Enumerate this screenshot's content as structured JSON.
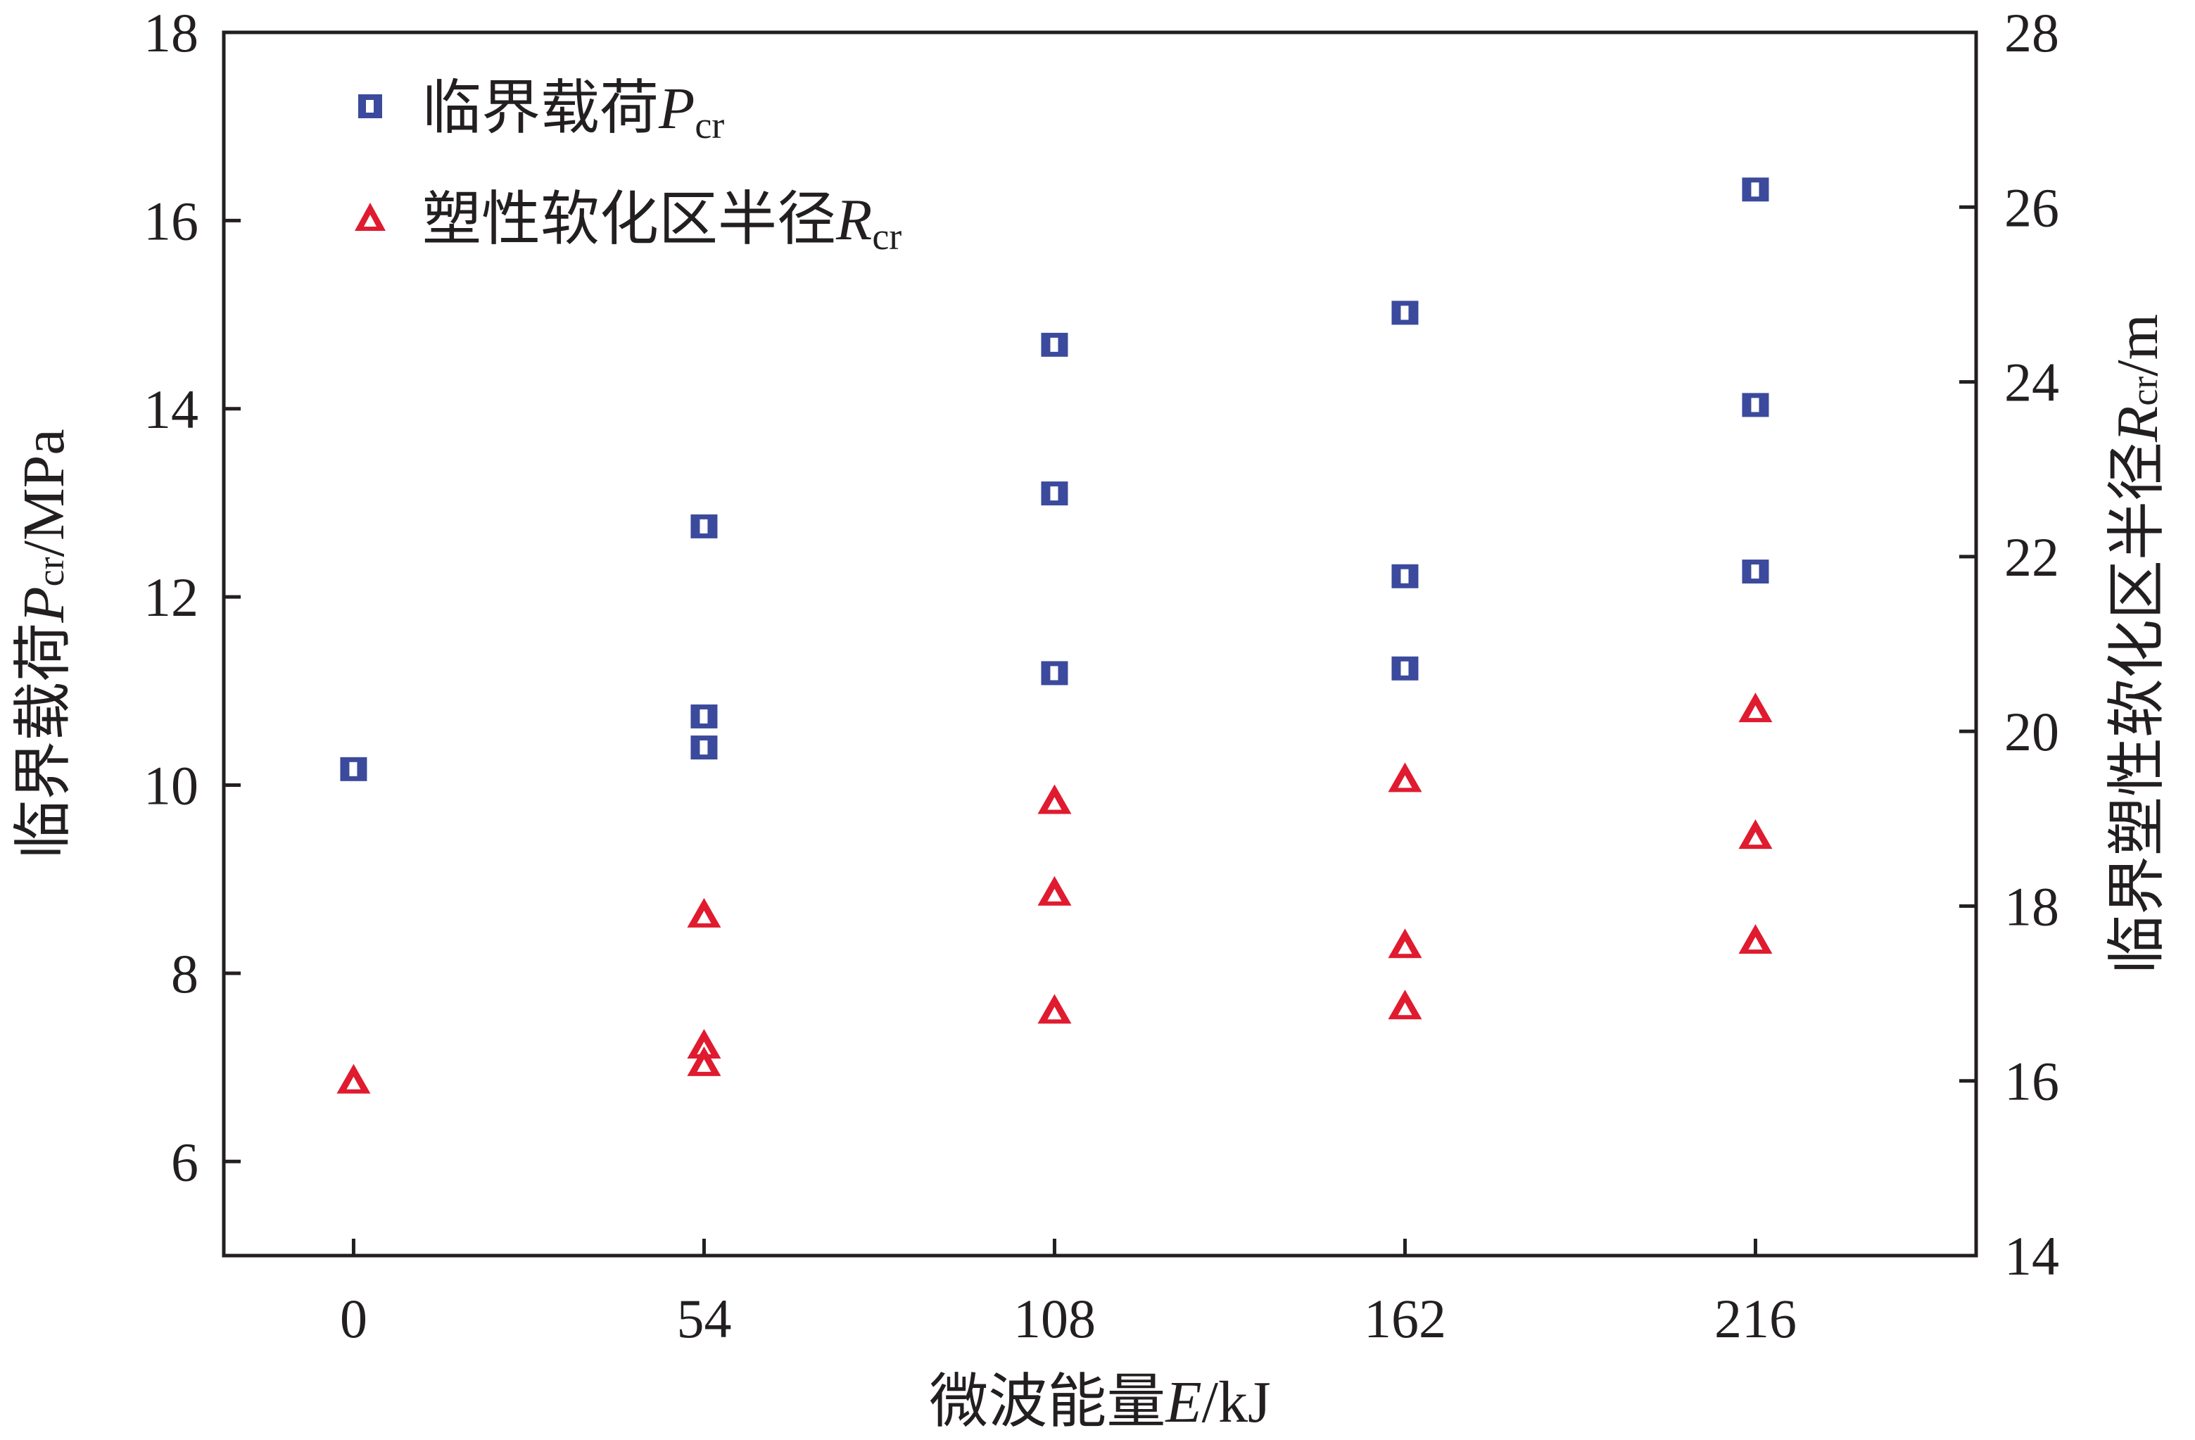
{
  "chart_data": {
    "type": "scatter",
    "x_ticks": [
      0,
      54,
      108,
      162,
      216
    ],
    "xlim": [
      -20,
      250
    ],
    "xlabel": {
      "main": "微波能量",
      "var": "E",
      "unit": "/kJ"
    },
    "y_left": {
      "lim": [
        5,
        18
      ],
      "ticks": [
        6,
        8,
        10,
        12,
        14,
        16,
        18
      ],
      "label": {
        "main": "临界载荷",
        "var": "P",
        "sub": "cr",
        "unit": "/MPa"
      }
    },
    "y_right": {
      "lim": [
        14,
        28
      ],
      "ticks": [
        14,
        16,
        18,
        20,
        22,
        24,
        26,
        28
      ],
      "label": {
        "main": "临界塑性软化区半径",
        "var": "R",
        "sub": "cr",
        "unit": "/m"
      }
    },
    "legend_position": "top-left",
    "series": [
      {
        "name": "临界载荷",
        "name_var": "P",
        "name_sub": "cr",
        "axis": "left",
        "marker": "square",
        "color": "#3b4a9c",
        "points": [
          [
            0,
            10.17
          ],
          [
            54,
            12.75
          ],
          [
            54,
            10.73
          ],
          [
            54,
            10.4
          ],
          [
            108,
            14.68
          ],
          [
            108,
            13.1
          ],
          [
            108,
            11.19
          ],
          [
            162,
            15.02
          ],
          [
            162,
            12.22
          ],
          [
            162,
            11.24
          ],
          [
            216,
            16.33
          ],
          [
            216,
            14.04
          ],
          [
            216,
            12.27
          ]
        ]
      },
      {
        "name": "塑性软化区半径",
        "name_var": "R",
        "name_sub": "cr",
        "axis": "right",
        "marker": "triangle",
        "color": "#e01b2f",
        "points": [
          [
            0,
            16.0
          ],
          [
            54,
            17.9
          ],
          [
            54,
            16.4
          ],
          [
            54,
            16.2
          ],
          [
            108,
            19.2
          ],
          [
            108,
            18.15
          ],
          [
            108,
            16.8
          ],
          [
            162,
            19.45
          ],
          [
            162,
            17.55
          ],
          [
            162,
            16.85
          ],
          [
            216,
            20.25
          ],
          [
            216,
            18.8
          ],
          [
            216,
            17.6
          ]
        ]
      }
    ]
  }
}
